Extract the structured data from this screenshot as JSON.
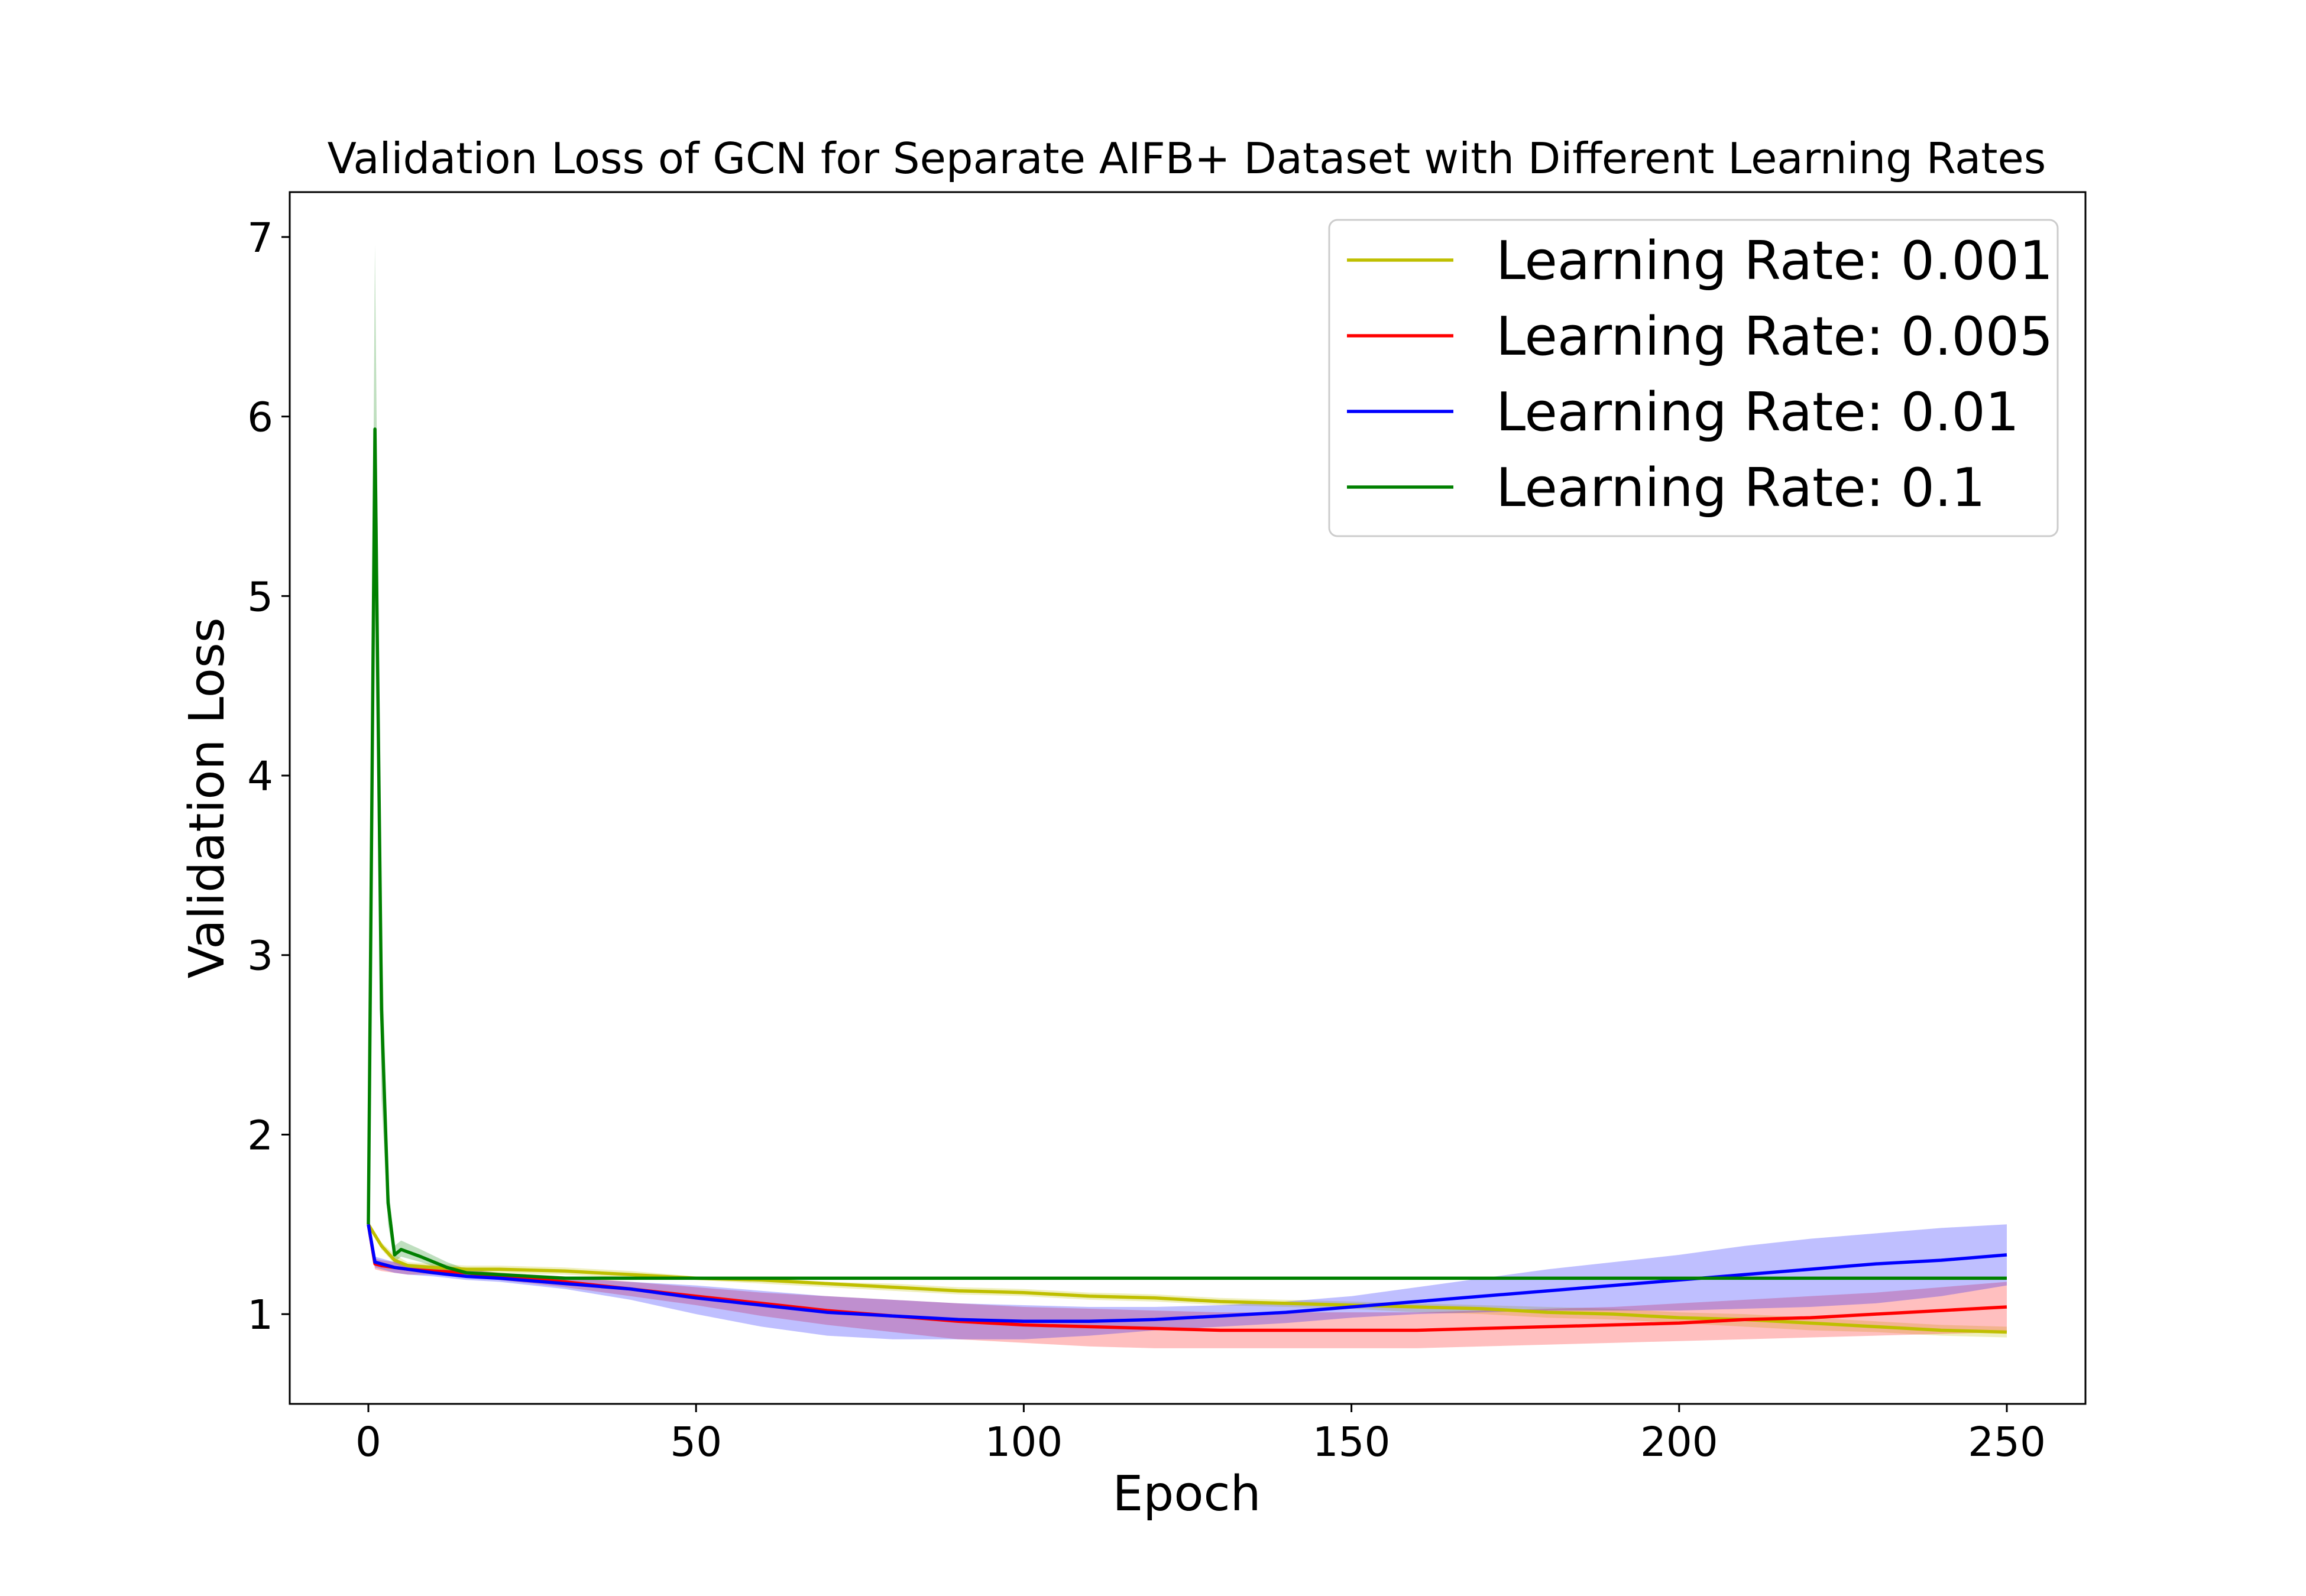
{
  "chart_data": {
    "type": "line",
    "title": "Validation Loss of GCN for Separate AIFB+ Dataset with Different Learning Rates",
    "xlabel": "Epoch",
    "ylabel": "Validation Loss",
    "xlim": [
      -12,
      262
    ],
    "ylim": [
      0.5,
      7.25
    ],
    "xticks": [
      0,
      50,
      100,
      150,
      200,
      250
    ],
    "yticks": [
      1,
      2,
      3,
      4,
      5,
      6,
      7
    ],
    "grid": false,
    "legend_position": "top-right",
    "series": [
      {
        "name": "Learning Rate: 0.001",
        "color": "#bfbf00",
        "x": [
          0,
          2,
          4,
          6,
          10,
          15,
          20,
          30,
          40,
          50,
          60,
          70,
          80,
          90,
          100,
          110,
          120,
          130,
          140,
          150,
          160,
          170,
          180,
          190,
          200,
          210,
          220,
          230,
          240,
          250
        ],
        "y": [
          1.5,
          1.38,
          1.3,
          1.27,
          1.26,
          1.25,
          1.25,
          1.24,
          1.22,
          1.2,
          1.19,
          1.17,
          1.15,
          1.13,
          1.12,
          1.1,
          1.09,
          1.07,
          1.06,
          1.05,
          1.04,
          1.03,
          1.01,
          1.0,
          0.98,
          0.97,
          0.95,
          0.93,
          0.91,
          0.9
        ],
        "lower": [
          1.5,
          1.36,
          1.28,
          1.25,
          1.24,
          1.23,
          1.23,
          1.22,
          1.2,
          1.19,
          1.17,
          1.15,
          1.13,
          1.11,
          1.1,
          1.08,
          1.07,
          1.05,
          1.04,
          1.03,
          1.01,
          1.0,
          0.98,
          0.97,
          0.95,
          0.93,
          0.91,
          0.9,
          0.88,
          0.87
        ],
        "upper": [
          1.5,
          1.4,
          1.33,
          1.29,
          1.28,
          1.27,
          1.27,
          1.26,
          1.24,
          1.21,
          1.2,
          1.18,
          1.17,
          1.15,
          1.14,
          1.12,
          1.11,
          1.09,
          1.08,
          1.07,
          1.06,
          1.05,
          1.04,
          1.03,
          1.01,
          1.0,
          0.98,
          0.96,
          0.94,
          0.93
        ]
      },
      {
        "name": "Learning Rate: 0.005",
        "color": "#ff0000",
        "x": [
          0,
          1,
          2,
          4,
          6,
          10,
          15,
          20,
          30,
          40,
          50,
          60,
          70,
          80,
          90,
          100,
          110,
          120,
          130,
          140,
          150,
          160,
          170,
          180,
          190,
          200,
          210,
          220,
          230,
          240,
          250
        ],
        "y": [
          1.5,
          1.28,
          1.27,
          1.26,
          1.25,
          1.24,
          1.23,
          1.21,
          1.18,
          1.14,
          1.1,
          1.06,
          1.02,
          0.99,
          0.96,
          0.94,
          0.93,
          0.92,
          0.91,
          0.91,
          0.91,
          0.91,
          0.92,
          0.93,
          0.94,
          0.95,
          0.97,
          0.98,
          1.0,
          1.02,
          1.04
        ],
        "lower": [
          1.5,
          1.25,
          1.24,
          1.23,
          1.22,
          1.22,
          1.21,
          1.19,
          1.15,
          1.1,
          1.05,
          0.99,
          0.94,
          0.9,
          0.86,
          0.84,
          0.82,
          0.81,
          0.81,
          0.81,
          0.81,
          0.81,
          0.82,
          0.83,
          0.84,
          0.85,
          0.86,
          0.87,
          0.88,
          0.89,
          0.9
        ],
        "upper": [
          1.5,
          1.31,
          1.3,
          1.29,
          1.28,
          1.27,
          1.25,
          1.23,
          1.21,
          1.18,
          1.15,
          1.12,
          1.1,
          1.08,
          1.06,
          1.04,
          1.03,
          1.02,
          1.01,
          1.01,
          1.01,
          1.01,
          1.02,
          1.03,
          1.04,
          1.06,
          1.08,
          1.1,
          1.12,
          1.15,
          1.18
        ]
      },
      {
        "name": "Learning Rate: 0.01",
        "color": "#0000ff",
        "x": [
          0,
          1,
          2,
          4,
          6,
          10,
          15,
          20,
          30,
          40,
          50,
          60,
          70,
          80,
          90,
          100,
          110,
          120,
          130,
          140,
          150,
          160,
          170,
          180,
          190,
          200,
          210,
          220,
          230,
          240,
          250
        ],
        "y": [
          1.5,
          1.29,
          1.28,
          1.26,
          1.25,
          1.23,
          1.21,
          1.2,
          1.17,
          1.14,
          1.09,
          1.05,
          1.01,
          0.99,
          0.97,
          0.96,
          0.96,
          0.97,
          0.99,
          1.01,
          1.04,
          1.07,
          1.1,
          1.13,
          1.16,
          1.19,
          1.22,
          1.25,
          1.28,
          1.3,
          1.33
        ],
        "lower": [
          1.5,
          1.26,
          1.25,
          1.23,
          1.22,
          1.21,
          1.19,
          1.18,
          1.14,
          1.08,
          1.0,
          0.93,
          0.88,
          0.86,
          0.86,
          0.86,
          0.88,
          0.91,
          0.93,
          0.95,
          0.98,
          1.0,
          1.01,
          1.02,
          1.02,
          1.02,
          1.03,
          1.04,
          1.06,
          1.1,
          1.16
        ],
        "upper": [
          1.5,
          1.32,
          1.31,
          1.29,
          1.28,
          1.26,
          1.23,
          1.22,
          1.2,
          1.18,
          1.16,
          1.13,
          1.1,
          1.08,
          1.06,
          1.05,
          1.04,
          1.04,
          1.05,
          1.07,
          1.1,
          1.15,
          1.2,
          1.25,
          1.29,
          1.33,
          1.38,
          1.42,
          1.45,
          1.48,
          1.5
        ]
      },
      {
        "name": "Learning Rate: 0.1",
        "color": "#008000",
        "x": [
          0,
          1,
          2,
          3,
          4,
          5,
          8,
          12,
          15,
          20,
          30,
          40,
          50,
          100,
          150,
          200,
          250
        ],
        "y": [
          1.5,
          5.93,
          2.7,
          1.62,
          1.33,
          1.36,
          1.32,
          1.26,
          1.23,
          1.22,
          1.2,
          1.2,
          1.2,
          1.2,
          1.2,
          1.2,
          1.2
        ],
        "lower": [
          1.5,
          4.9,
          2.2,
          1.5,
          1.29,
          1.32,
          1.29,
          1.24,
          1.21,
          1.2,
          1.19,
          1.19,
          1.2,
          1.2,
          1.2,
          1.2,
          1.2
        ],
        "upper": [
          1.5,
          6.96,
          3.2,
          1.74,
          1.38,
          1.41,
          1.36,
          1.29,
          1.25,
          1.23,
          1.21,
          1.21,
          1.2,
          1.2,
          1.2,
          1.2,
          1.2
        ]
      }
    ]
  }
}
